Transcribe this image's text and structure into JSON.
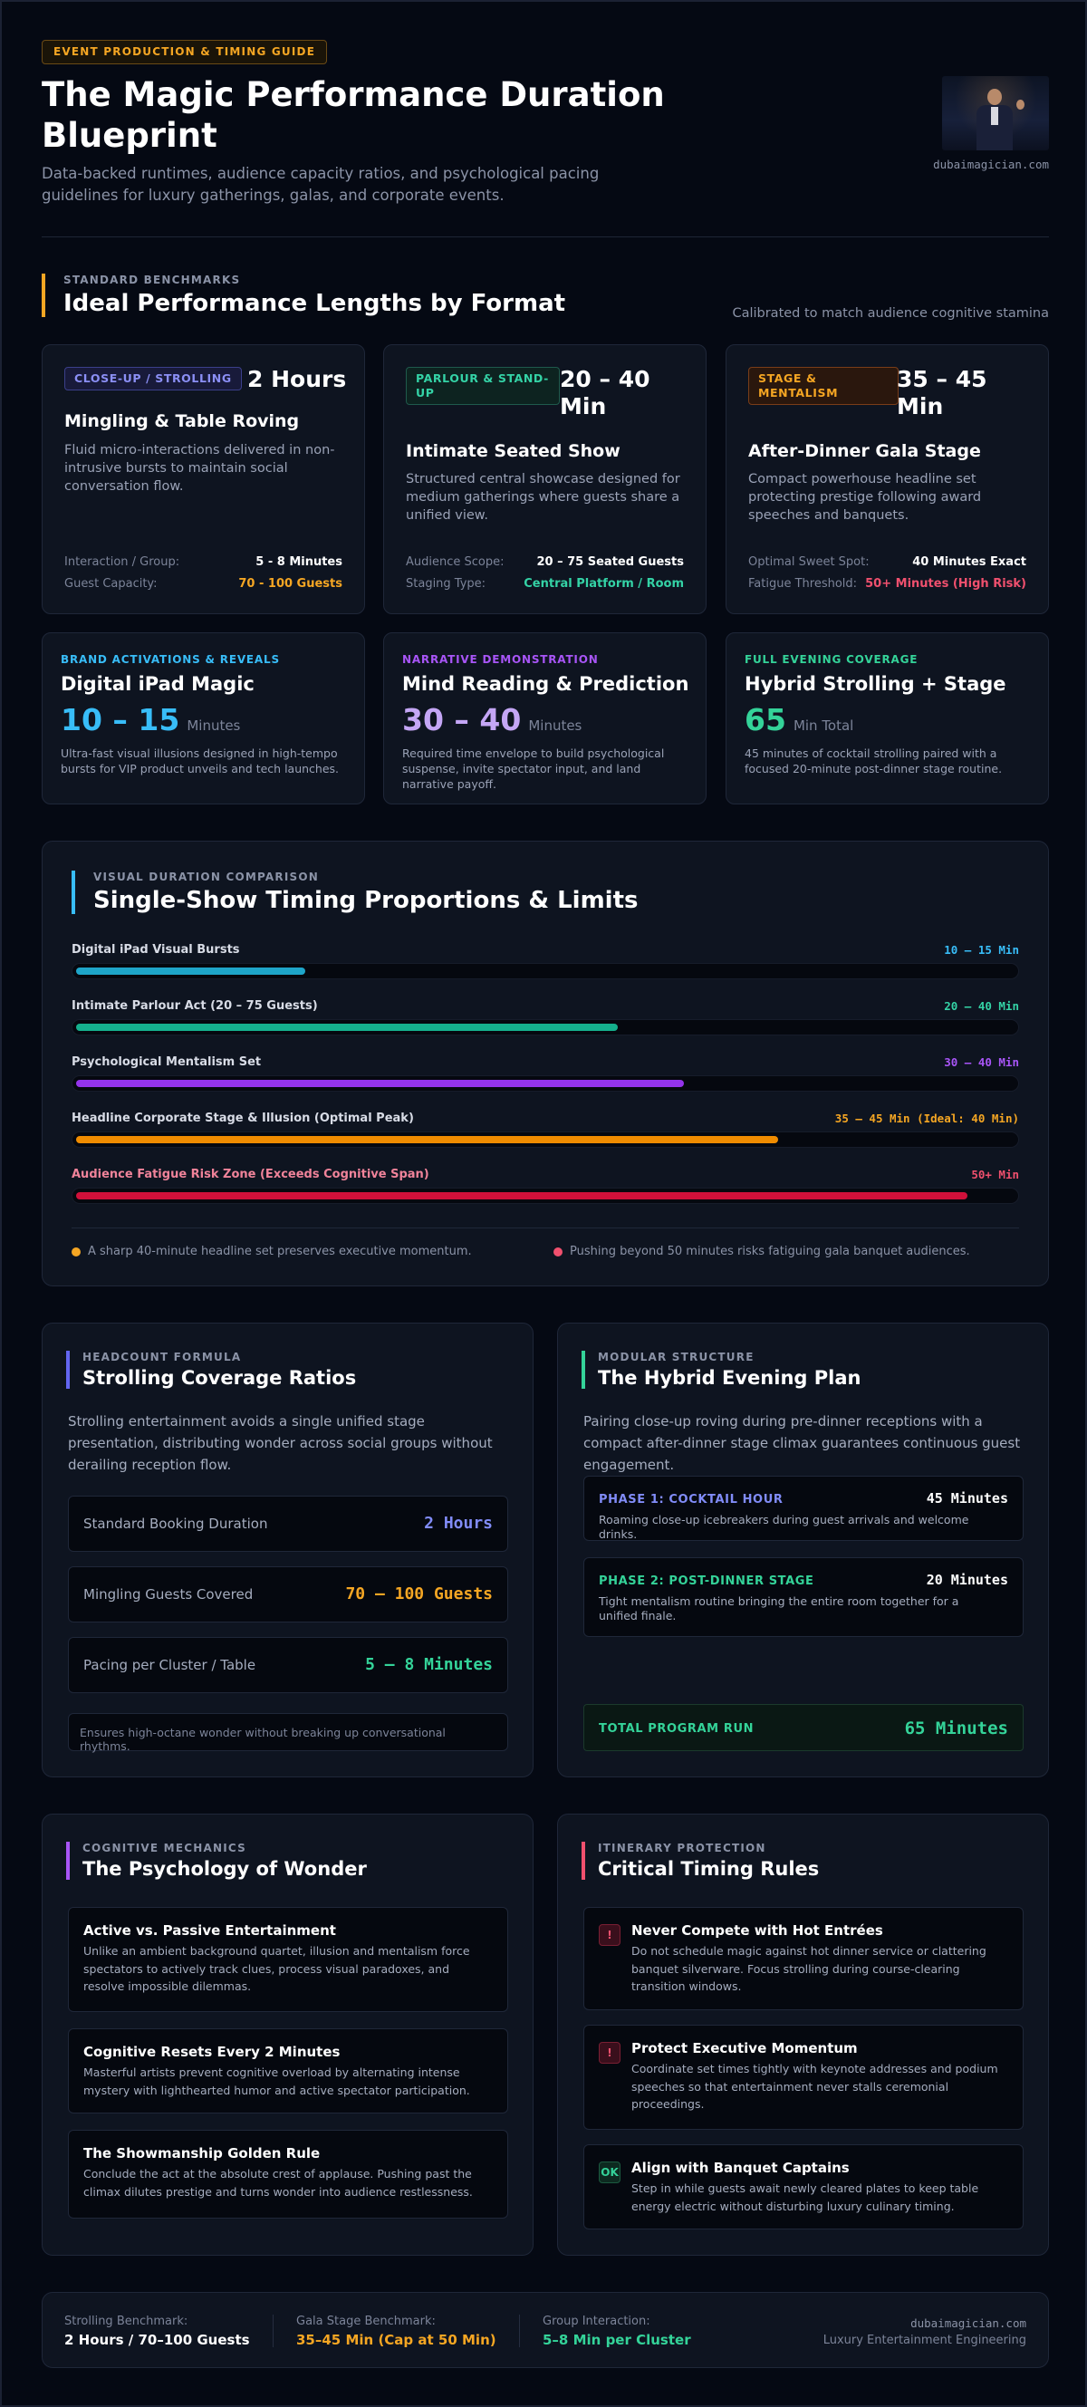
{
  "header": {
    "eyebrow": "EVENT PRODUCTION & TIMING GUIDE",
    "title": "The Magic Performance Duration Blueprint",
    "subtitle": "Data-backed runtimes, audience capacity ratios, and psychological pacing guidelines for luxury gatherings, galas, and corporate events.",
    "site": "dubaimagician.com"
  },
  "benchmarks": {
    "kicker": "STANDARD BENCHMARKS",
    "title": "Ideal Performance Lengths by Format",
    "note": "Calibrated to match audience cognitive stamina",
    "cards": [
      {
        "badge": "CLOSE-UP / STROLLING",
        "duration": "2 Hours",
        "title": "Mingling & Table Roving",
        "desc": "Fluid micro-interactions delivered in non-intrusive bursts to maintain social conversation flow.",
        "row1_k": "Interaction / Group:",
        "row1_v": "5 - 8 Minutes",
        "row2_k": "Guest Capacity:",
        "row2_v": "70 - 100 Guests"
      },
      {
        "badge": "PARLOUR & STAND-UP",
        "duration": "20 – 40 Min",
        "title": "Intimate Seated Show",
        "desc": "Structured central showcase designed for medium gatherings where guests share a unified view.",
        "row1_k": "Audience Scope:",
        "row1_v": "20 – 75 Seated Guests",
        "row2_k": "Staging Type:",
        "row2_v": "Central Platform / Room"
      },
      {
        "badge": "STAGE & MENTALISM",
        "duration": "35 – 45 Min",
        "title": "After-Dinner Gala Stage",
        "desc": "Compact powerhouse headline set protecting prestige following award speeches and banquets.",
        "row1_k": "Optimal Sweet Spot:",
        "row1_v": "40 Minutes Exact",
        "row2_k": "Fatigue Threshold:",
        "row2_v": "50+ Minutes (High Risk)"
      }
    ],
    "small_cards": [
      {
        "kicker": "BRAND ACTIVATIONS & REVEALS",
        "title": "Digital iPad Magic",
        "big": "10 – 15",
        "unit": "Minutes",
        "desc": "Ultra-fast visual illusions designed in high-tempo bursts for VIP product unveils and tech launches."
      },
      {
        "kicker": "NARRATIVE DEMONSTRATION",
        "title": "Mind Reading & Prediction",
        "big": "30 – 40",
        "unit": "Minutes",
        "desc": "Required time envelope to build psychological suspense, invite spectator input, and land narrative payoff."
      },
      {
        "kicker": "FULL EVENING COVERAGE",
        "title": "Hybrid Strolling + Stage",
        "big": "65",
        "unit": "Min Total",
        "desc": "45 minutes of cocktail strolling paired with a focused 20-minute post-dinner stage routine."
      }
    ]
  },
  "comparison": {
    "kicker": "VISUAL DURATION COMPARISON",
    "title": "Single-Show Timing Proportions & Limits",
    "bars": [
      {
        "label": "Digital iPad Visual Bursts",
        "value": "10 – 15 Min",
        "fill": 0.25
      },
      {
        "label": "Intimate Parlour Act (20 – 75 Guests)",
        "value": "20 – 40 Min",
        "fill": 0.58
      },
      {
        "label": "Psychological Mentalism Set",
        "value": "30 – 40 Min",
        "fill": 0.65
      },
      {
        "label": "Headline Corporate Stage & Illusion (Optimal Peak)",
        "value": "35 – 45 Min (Ideal: 40 Min)",
        "fill": 0.75
      },
      {
        "label": "Audience Fatigue Risk Zone (Exceeds Cognitive Span)",
        "value": "50+ Min",
        "fill": 0.95
      }
    ],
    "legend": [
      "A sharp 40-minute headline set preserves executive momentum.",
      "Pushing beyond 50 minutes risks fatiguing gala banquet audiences."
    ]
  },
  "strolling": {
    "kicker": "HEADCOUNT FORMULA",
    "title": "Strolling Coverage Ratios",
    "desc": "Strolling entertainment avoids a single unified stage presentation, distributing wonder across social groups without derailing reception flow.",
    "stats": [
      {
        "k": "Standard Booking Duration",
        "v": "2 Hours"
      },
      {
        "k": "Mingling Guests Covered",
        "v": "70 – 100 Guests"
      },
      {
        "k": "Pacing per Cluster / Table",
        "v": "5 – 8 Minutes"
      }
    ],
    "note": "Ensures high-octane wonder without breaking up conversational rhythms."
  },
  "hybrid": {
    "kicker": "MODULAR STRUCTURE",
    "title": "The Hybrid Evening Plan",
    "desc": "Pairing close-up roving during pre-dinner receptions with a compact after-dinner stage climax guarantees continuous guest engagement.",
    "phases": [
      {
        "k": "PHASE 1: COCKTAIL HOUR",
        "v": "45 Minutes",
        "d": "Roaming close-up icebreakers during guest arrivals and welcome drinks."
      },
      {
        "k": "PHASE 2: POST-DINNER STAGE",
        "v": "20 Minutes",
        "d": "Tight mentalism routine bringing the entire room together for a unified finale."
      }
    ],
    "total_k": "TOTAL PROGRAM RUN",
    "total_v": "65 Minutes"
  },
  "psychology": {
    "kicker": "COGNITIVE MECHANICS",
    "title": "The Psychology of Wonder",
    "tips": [
      {
        "t": "Active vs. Passive Entertainment",
        "d": "Unlike an ambient background quartet, illusion and mentalism force spectators to actively track clues, process visual paradoxes, and resolve impossible dilemmas."
      },
      {
        "t": "Cognitive Resets Every 2 Minutes",
        "d": "Masterful artists prevent cognitive overload by alternating intense mystery with lighthearted humor and active spectator participation."
      },
      {
        "t": "The Showmanship Golden Rule",
        "d": "Conclude the act at the absolute crest of applause. Pushing past the climax dilutes prestige and turns wonder into audience restlessness."
      }
    ]
  },
  "rules": {
    "kicker": "ITINERARY PROTECTION",
    "title": "Critical Timing Rules",
    "items": [
      {
        "icon": "!",
        "t": "Never Compete with Hot Entrées",
        "d": "Do not schedule magic against hot dinner service or clattering banquet silverware. Focus strolling during course-clearing transition windows."
      },
      {
        "icon": "!",
        "t": "Protect Executive Momentum",
        "d": "Coordinate set times tightly with keynote addresses and podium speeches so that entertainment never stalls ceremonial proceedings."
      },
      {
        "icon": "OK",
        "t": "Align with Banquet Captains",
        "d": "Step in while guests await newly cleared plates to keep table energy electric without disturbing luxury culinary timing."
      }
    ]
  },
  "footer": {
    "cols": [
      {
        "k": "Strolling Benchmark:",
        "v": "2 Hours / 70–100 Guests"
      },
      {
        "k": "Gala Stage Benchmark:",
        "v": "35–45 Min (Cap at 50 Min)"
      },
      {
        "k": "Group Interaction:",
        "v": "5–8 Min per Cluster"
      }
    ],
    "site": "dubaimagician.com",
    "tagline": "Luxury Entertainment Engineering"
  }
}
